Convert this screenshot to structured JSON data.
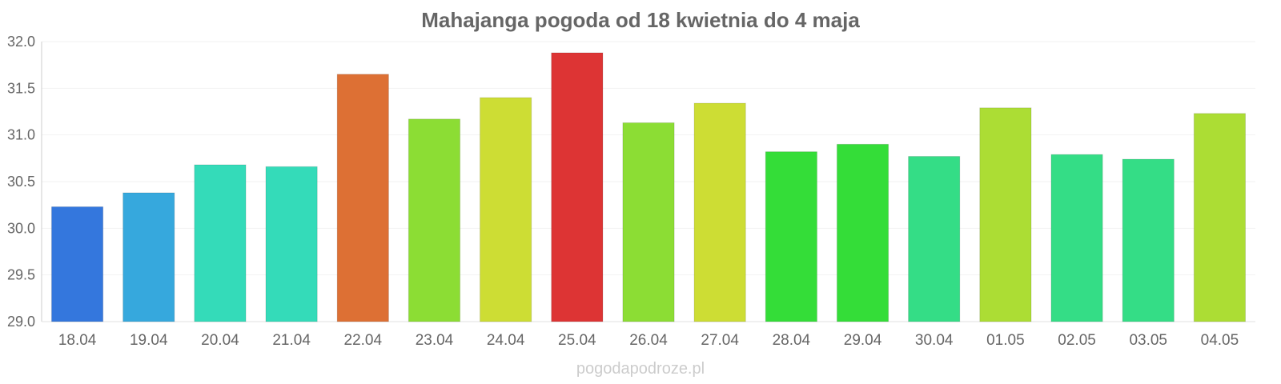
{
  "chart_data": {
    "type": "bar",
    "title": "Mahajanga pogoda od 18 kwietnia do 4 maja",
    "xlabel": "",
    "ylabel": "",
    "categories": [
      "18.04",
      "19.04",
      "20.04",
      "21.04",
      "22.04",
      "23.04",
      "24.04",
      "25.04",
      "26.04",
      "27.04",
      "28.04",
      "29.04",
      "30.04",
      "01.05",
      "02.05",
      "03.05",
      "04.05"
    ],
    "values": [
      30.23,
      30.38,
      30.68,
      30.66,
      31.65,
      31.17,
      31.4,
      31.88,
      31.13,
      31.34,
      30.82,
      30.9,
      30.77,
      31.29,
      30.79,
      30.74,
      31.23
    ],
    "colors": [
      "#3477dd",
      "#36a8dd",
      "#34dbb9",
      "#34dbb9",
      "#dd7034",
      "#8cdd34",
      "#cddd34",
      "#dd3434",
      "#8cdd34",
      "#cddd34",
      "#34dd38",
      "#34dd38",
      "#34dd86",
      "#acdd34",
      "#34dd86",
      "#34dd86",
      "#acdd34"
    ],
    "ylim": [
      29.0,
      32.0
    ],
    "yticks": [
      "29.0",
      "29.5",
      "30.0",
      "30.5",
      "31.0",
      "31.5",
      "32.0"
    ],
    "grid": true,
    "legend": "none"
  },
  "watermark": "pogodapodroze.pl"
}
